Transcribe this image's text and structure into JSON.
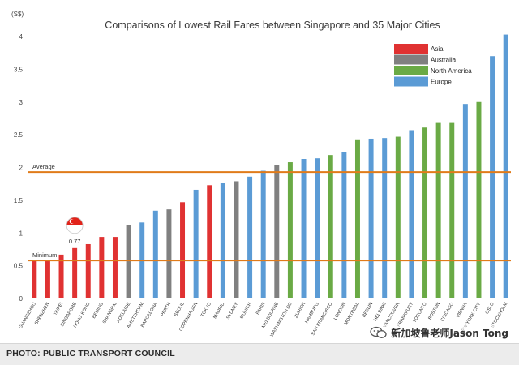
{
  "chart_data": {
    "type": "bar",
    "title": "Comparisons of Lowest Rail Fares between Singapore and 35 Major Cities",
    "unit_label": "(S$)",
    "ylim": [
      0,
      4
    ],
    "yticks": [
      "0",
      "0.5",
      "1",
      "1.5",
      "2",
      "2.5",
      "3",
      "3.5",
      "4"
    ],
    "grid": false,
    "legend_position": "top-right",
    "legend": [
      {
        "name": "Asia",
        "color": "#e03232"
      },
      {
        "name": "Australia",
        "color": "#808080"
      },
      {
        "name": "North America",
        "color": "#6aaa45"
      },
      {
        "name": "Europe",
        "color": "#5b9bd5"
      }
    ],
    "categories": [
      "GUANGZHOU",
      "SHENZHEN",
      "TAIPEI",
      "SINGAPORE",
      "HONG KONG",
      "BEIJING",
      "SHANGHAI",
      "ADELAIDE",
      "AMSTERDAM",
      "BARCELONA",
      "PERTH",
      "SEOUL",
      "COPENHAGEN",
      "TOKYO",
      "MADRID",
      "SYDNEY",
      "MUNICH",
      "PARIS",
      "MELBOURNE",
      "WASHINGTON DC",
      "ZURICH",
      "HAMBURG",
      "SAN FRANCISCO",
      "LONDON",
      "MONTREAL",
      "BERLIN",
      "HELSINKI",
      "VANCOUVER",
      "FRANKFURT",
      "TORONTO",
      "BOSTON",
      "CHICAGO",
      "VIENNA",
      "NEW YORK CITY",
      "OSLO",
      "STOCKHOLM"
    ],
    "values": [
      0.58,
      0.58,
      0.67,
      0.77,
      0.83,
      0.94,
      0.94,
      1.12,
      1.16,
      1.34,
      1.36,
      1.47,
      1.66,
      1.73,
      1.77,
      1.79,
      1.86,
      1.95,
      2.04,
      2.08,
      2.13,
      2.14,
      2.19,
      2.24,
      2.43,
      2.44,
      2.45,
      2.47,
      2.57,
      2.61,
      2.68,
      2.68,
      2.97,
      3.0,
      3.7,
      4.03
    ],
    "regions": [
      "Asia",
      "Asia",
      "Asia",
      "Asia",
      "Asia",
      "Asia",
      "Asia",
      "Australia",
      "Europe",
      "Europe",
      "Australia",
      "Asia",
      "Europe",
      "Asia",
      "Europe",
      "Australia",
      "Europe",
      "Europe",
      "Australia",
      "North America",
      "Europe",
      "Europe",
      "North America",
      "Europe",
      "North America",
      "Europe",
      "Europe",
      "North America",
      "Europe",
      "North America",
      "North America",
      "North America",
      "Europe",
      "North America",
      "Europe",
      "Europe"
    ],
    "reference_lines": [
      {
        "label": "Average",
        "value": 1.93,
        "color": "#e07b1a"
      },
      {
        "label": "Minimum",
        "value": 0.58,
        "color": "#e07b1a"
      }
    ],
    "annotations": [
      {
        "category": "SINGAPORE",
        "text": "0.77",
        "marker": "singapore-flag"
      }
    ]
  },
  "footer": {
    "credit": "PHOTO: PUBLIC TRANSPORT COUNCIL"
  },
  "watermark": {
    "text": "新加坡鲁老师Jason Tong",
    "icon": "wechat-icon"
  }
}
